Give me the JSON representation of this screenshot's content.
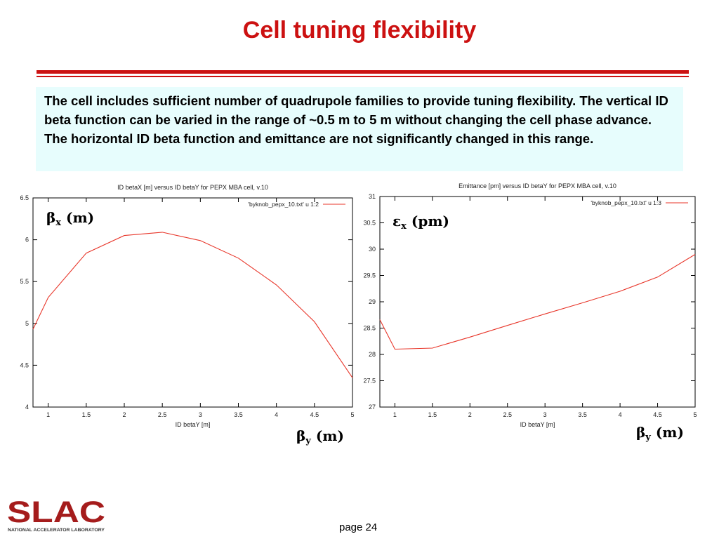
{
  "slide": {
    "title": "Cell tuning flexibility",
    "body_text": "The cell includes sufficient number of quadrupole families to provide tuning flexibility. The vertical ID beta function can be varied in the range of ~0.5 m to 5 m without changing the cell phase advance. The horizontal ID beta function and emittance are not significantly changed in this range.",
    "page_label": "page 24",
    "logo_text": "SLAC",
    "logo_subtext": "NATIONAL ACCELERATOR LABORATORY",
    "accent_color": "#cc1111",
    "textbox_color": "#e7fdfd"
  },
  "overlays": {
    "chart1_y_symbol": "β",
    "chart1_y_sub": "x",
    "chart1_y_unit": "(m)",
    "chart1_x_symbol": "β",
    "chart1_x_sub": "y",
    "chart1_x_unit": "(m)",
    "chart2_y_symbol": "ε",
    "chart2_y_sub": "x",
    "chart2_y_unit": "(pm)",
    "chart2_x_symbol": "β",
    "chart2_x_sub": "y",
    "chart2_x_unit": "(m)"
  },
  "chart_data": [
    {
      "type": "line",
      "title": "ID betaX [m] versus ID betaY for PEPX MBA cell, v.10",
      "xlabel": "ID betaY [m]",
      "ylabel": "",
      "xlim": [
        0.8,
        5
      ],
      "ylim": [
        4,
        6.5
      ],
      "xticks": [
        1,
        1.5,
        2,
        2.5,
        3,
        3.5,
        4,
        4.5,
        5
      ],
      "yticks": [
        4,
        4.5,
        5,
        5.5,
        6,
        6.5
      ],
      "legend": "top-right",
      "grid": false,
      "series": [
        {
          "name": "'byknob_pepx_10.txt' u 1:2",
          "color": "#e8362a",
          "x": [
            0.8,
            1.0,
            1.5,
            2.0,
            2.5,
            3.0,
            3.5,
            4.0,
            4.5,
            5.0
          ],
          "values": [
            4.93,
            5.31,
            5.84,
            6.05,
            6.09,
            5.99,
            5.78,
            5.46,
            5.02,
            4.35
          ]
        }
      ]
    },
    {
      "type": "line",
      "title": "Emittance [pm] versus ID betaY for PEPX MBA cell, v.10",
      "xlabel": "ID betaY [m]",
      "ylabel": "",
      "xlim": [
        0.8,
        5
      ],
      "ylim": [
        27,
        31
      ],
      "xticks": [
        1,
        1.5,
        2,
        2.5,
        3,
        3.5,
        4,
        4.5,
        5
      ],
      "yticks": [
        27,
        27.5,
        28,
        28.5,
        29,
        29.5,
        30,
        30.5,
        31
      ],
      "legend": "top-right",
      "grid": false,
      "series": [
        {
          "name": "'byknob_pepx_10.txt' u 1:3",
          "color": "#e8362a",
          "x": [
            0.8,
            1.0,
            1.5,
            2.0,
            2.5,
            3.0,
            3.5,
            4.0,
            4.5,
            5.0
          ],
          "values": [
            28.66,
            28.1,
            28.12,
            28.33,
            28.55,
            28.77,
            28.98,
            29.2,
            29.47,
            29.9
          ]
        }
      ]
    }
  ]
}
